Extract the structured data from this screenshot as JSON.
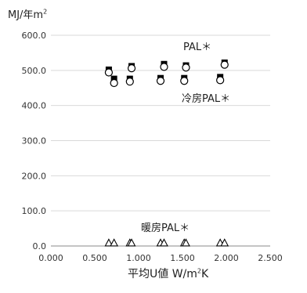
{
  "chart_data": {
    "type": "scatter",
    "ylabel": {
      "main": "MJ/年m",
      "sup": "2"
    },
    "xlabel": {
      "main": "平均U値 W/m",
      "sup": "2",
      "tail": "K"
    },
    "xlim": [
      0,
      2.5
    ],
    "ylim": [
      0,
      600
    ],
    "xticks": [
      0,
      0.5,
      1.0,
      1.5,
      2.0,
      2.5
    ],
    "xtick_labels": [
      "0.000",
      "0.500",
      "1.000",
      "1.500",
      "2.000",
      "2.500"
    ],
    "yticks": [
      0,
      100,
      200,
      300,
      400,
      500,
      600
    ],
    "ytick_labels": [
      "0.0",
      "100.0",
      "200.0",
      "300.0",
      "400.0",
      "500.0",
      "600.0"
    ],
    "grid": "horizontal",
    "series": [
      {
        "name": "PAL＊",
        "marker": "filled-square",
        "points": [
          {
            "x": 0.66,
            "y": 502
          },
          {
            "x": 0.72,
            "y": 476
          },
          {
            "x": 0.9,
            "y": 476
          },
          {
            "x": 0.92,
            "y": 512
          },
          {
            "x": 1.25,
            "y": 478
          },
          {
            "x": 1.29,
            "y": 518
          },
          {
            "x": 1.52,
            "y": 478
          },
          {
            "x": 1.54,
            "y": 514
          },
          {
            "x": 1.93,
            "y": 481
          },
          {
            "x": 1.98,
            "y": 522
          }
        ]
      },
      {
        "name": "冷房PAL＊",
        "marker": "open-circle",
        "points": [
          {
            "x": 0.66,
            "y": 494
          },
          {
            "x": 0.72,
            "y": 464
          },
          {
            "x": 0.9,
            "y": 468
          },
          {
            "x": 0.92,
            "y": 506
          },
          {
            "x": 1.25,
            "y": 470
          },
          {
            "x": 1.29,
            "y": 510
          },
          {
            "x": 1.52,
            "y": 470
          },
          {
            "x": 1.54,
            "y": 508
          },
          {
            "x": 1.93,
            "y": 472
          },
          {
            "x": 1.98,
            "y": 516
          }
        ]
      },
      {
        "name": "暖房PAL＊",
        "marker": "open-triangle",
        "points": [
          {
            "x": 0.66,
            "y": 8
          },
          {
            "x": 0.72,
            "y": 8
          },
          {
            "x": 0.9,
            "y": 8
          },
          {
            "x": 0.92,
            "y": 8
          },
          {
            "x": 1.25,
            "y": 8
          },
          {
            "x": 1.29,
            "y": 8
          },
          {
            "x": 1.52,
            "y": 8
          },
          {
            "x": 1.54,
            "y": 8
          },
          {
            "x": 1.93,
            "y": 8
          },
          {
            "x": 1.98,
            "y": 8
          }
        ]
      }
    ],
    "annotations": [
      {
        "text": "PAL＊",
        "series": 0
      },
      {
        "text": "冷房PAL＊",
        "series": 1
      },
      {
        "text": "暖房PAL＊",
        "series": 2
      }
    ]
  }
}
